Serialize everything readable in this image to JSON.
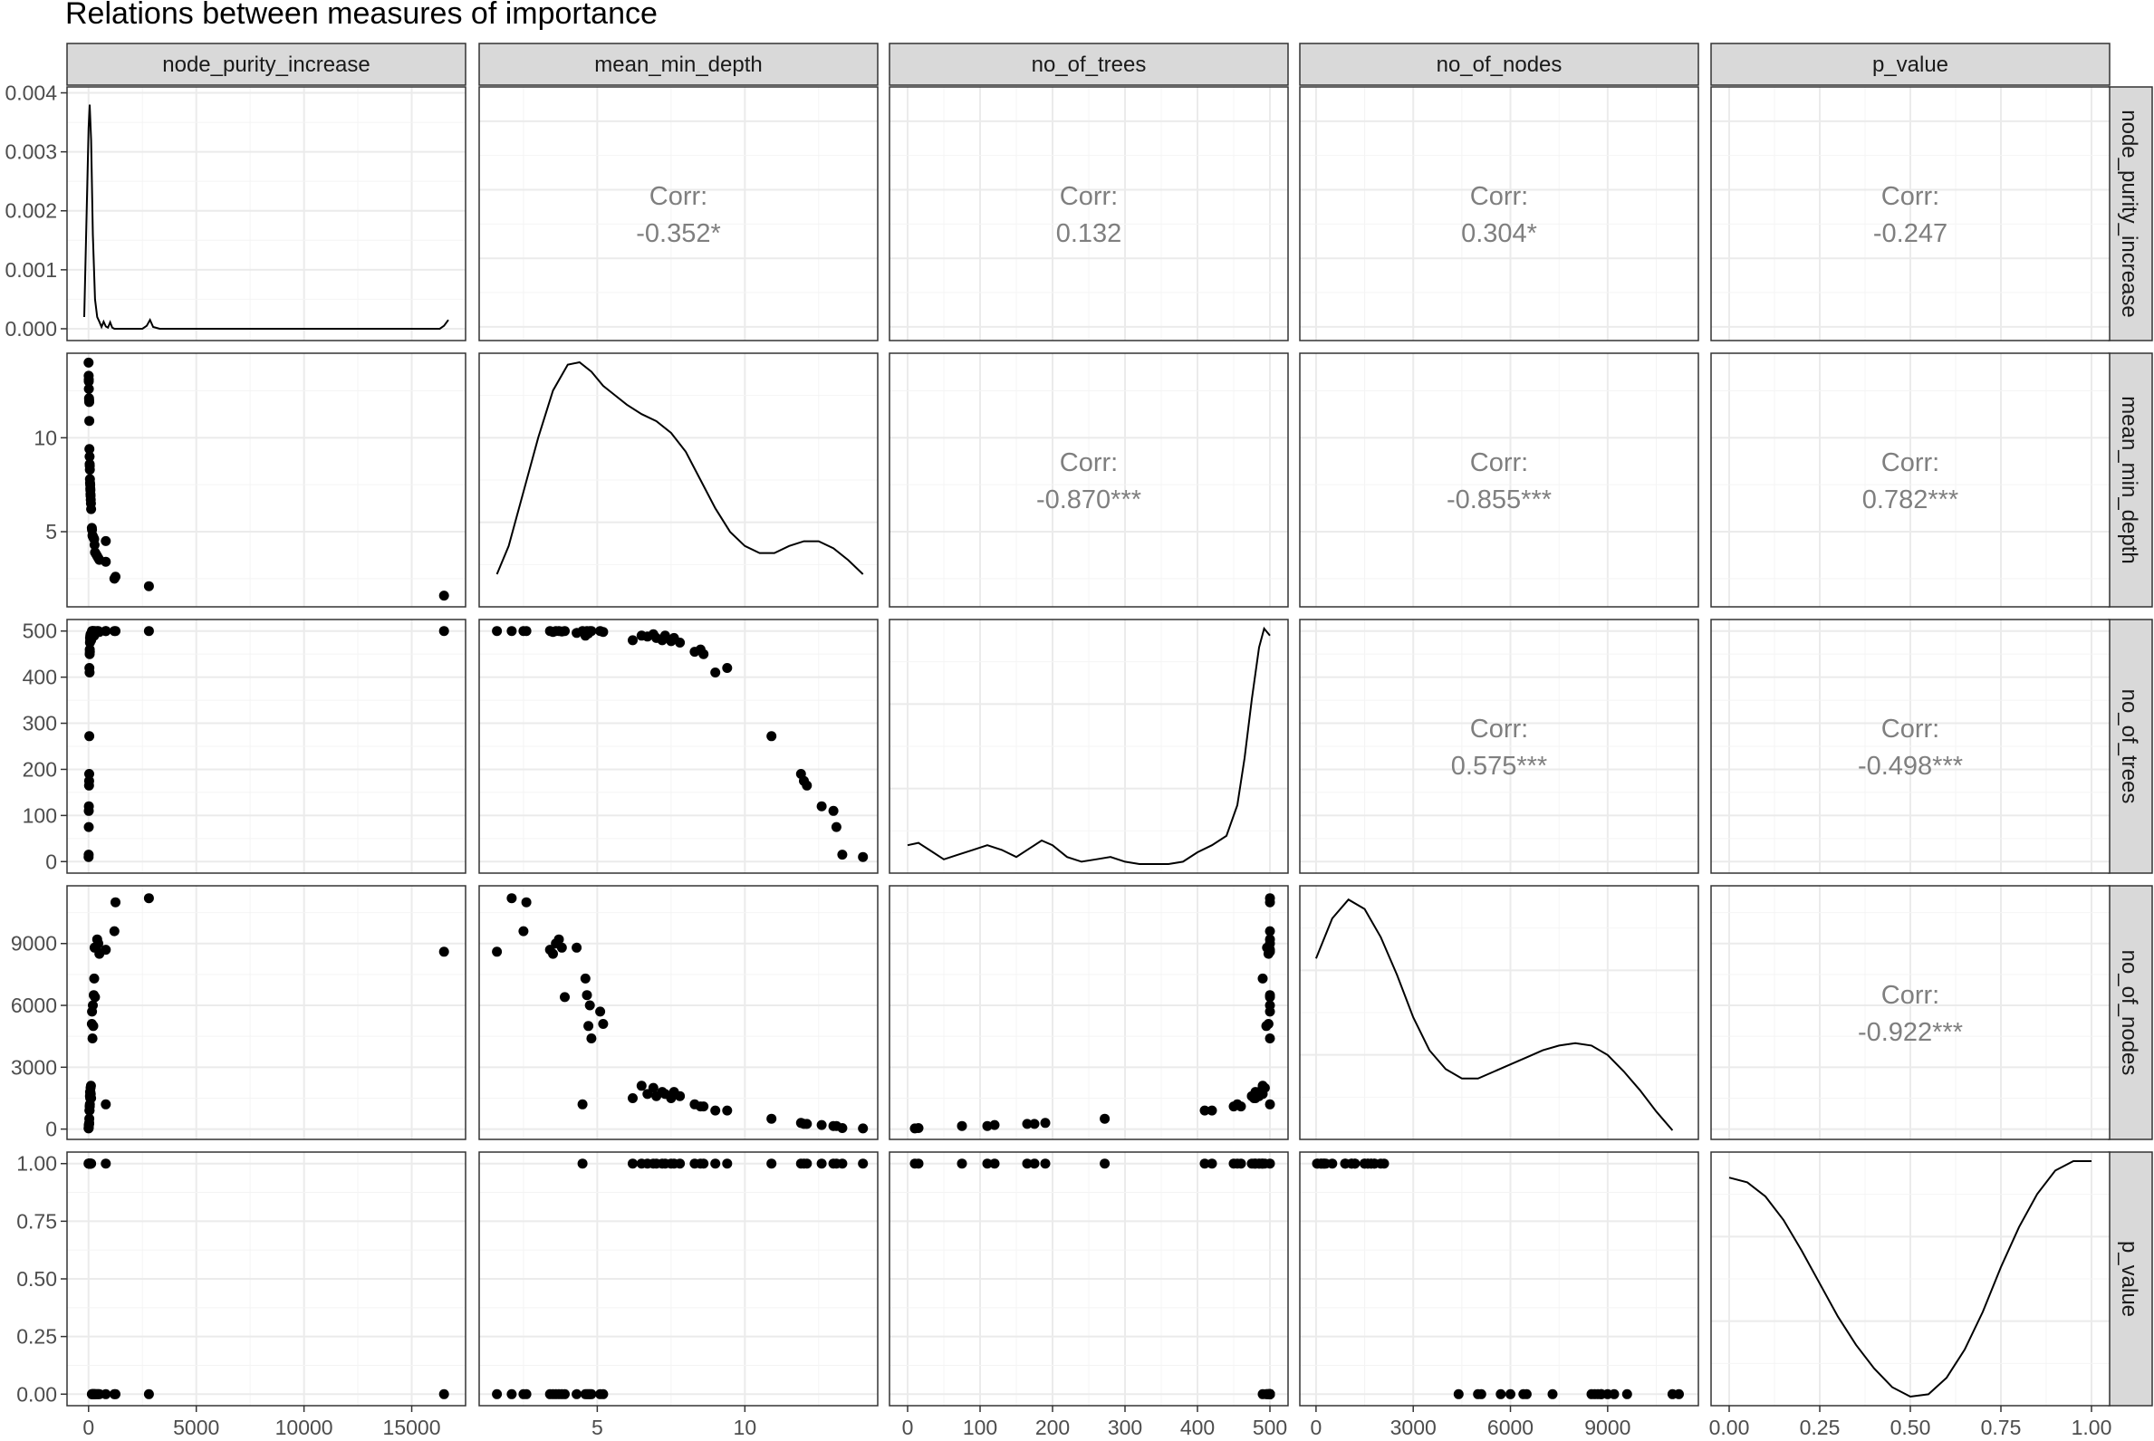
{
  "title": "Relations between measures of importance",
  "variables": [
    "node_purity_increase",
    "mean_min_depth",
    "no_of_trees",
    "no_of_nodes",
    "p_value"
  ],
  "colors": {
    "strip_fill": "#d9d9d9",
    "panel_border": "#333333",
    "grid_major": "#ebebeb",
    "grid_minor": "#f4f4f4",
    "points": "#000000",
    "corr_text": "#7f7f7f",
    "text": "#000000"
  },
  "chart_data": {
    "type": "scatter-matrix",
    "grid": true,
    "axes": {
      "node_purity_increase": {
        "lim": [
          -1000,
          17500
        ],
        "ticks": [
          0,
          5000,
          10000,
          15000
        ],
        "tick_labels": [
          "0",
          "5000",
          "10000",
          "15000"
        ]
      },
      "mean_min_depth": {
        "lim": [
          1,
          14.5
        ],
        "ticks": [
          5,
          10
        ],
        "tick_labels": [
          "5",
          "10"
        ]
      },
      "no_of_trees": {
        "lim": [
          -25,
          525
        ],
        "ticks": [
          0,
          100,
          200,
          300,
          400,
          500
        ],
        "tick_labels": [
          "0",
          "100",
          "200",
          "300",
          "400",
          "500"
        ]
      },
      "no_of_nodes": {
        "lim": [
          -500,
          11800
        ],
        "ticks": [
          0,
          3000,
          6000,
          9000
        ],
        "tick_labels": [
          "0",
          "3000",
          "6000",
          "9000"
        ]
      },
      "p_value": {
        "lim": [
          -0.05,
          1.05
        ],
        "ticks": [
          0,
          0.25,
          0.5,
          0.75,
          1
        ],
        "tick_labels": [
          "0.00",
          "0.25",
          "0.50",
          "0.75",
          "1.00"
        ]
      }
    },
    "density_y_axis": {
      "lim": [
        -0.0002,
        0.0041
      ],
      "ticks": [
        0,
        0.001,
        0.002,
        0.003,
        0.004
      ],
      "tick_labels": [
        "0.000",
        "0.001",
        "0.002",
        "0.003",
        "0.004"
      ]
    },
    "correlations": [
      {
        "row": 0,
        "col": 1,
        "label": "Corr:",
        "value": "-0.352*"
      },
      {
        "row": 0,
        "col": 2,
        "label": "Corr:",
        "value": "0.132"
      },
      {
        "row": 0,
        "col": 3,
        "label": "Corr:",
        "value": "0.304*"
      },
      {
        "row": 0,
        "col": 4,
        "label": "Corr:",
        "value": "-0.247"
      },
      {
        "row": 1,
        "col": 2,
        "label": "Corr:",
        "value": "-0.870***"
      },
      {
        "row": 1,
        "col": 3,
        "label": "Corr:",
        "value": "-0.855***"
      },
      {
        "row": 1,
        "col": 4,
        "label": "Corr:",
        "value": "0.782***"
      },
      {
        "row": 2,
        "col": 3,
        "label": "Corr:",
        "value": "0.575***"
      },
      {
        "row": 2,
        "col": 4,
        "label": "Corr:",
        "value": "-0.498***"
      },
      {
        "row": 3,
        "col": 4,
        "label": "Corr:",
        "value": "-0.922***"
      }
    ],
    "densities": {
      "node_purity_increase": [
        [
          -200,
          0.0002
        ],
        [
          0,
          0.0034
        ],
        [
          50,
          0.0038
        ],
        [
          120,
          0.0032
        ],
        [
          200,
          0.0016
        ],
        [
          300,
          0.0005
        ],
        [
          400,
          0.0002
        ],
        [
          500,
          0.00012
        ],
        [
          600,
          3e-05
        ],
        [
          700,
          0.00012
        ],
        [
          800,
          4e-05
        ],
        [
          900,
          2e-05
        ],
        [
          1000,
          0.00011
        ],
        [
          1100,
          2e-05
        ],
        [
          1200,
          0.0
        ],
        [
          1500,
          0.0
        ],
        [
          2000,
          0.0
        ],
        [
          2500,
          0.0
        ],
        [
          2700,
          5e-05
        ],
        [
          2850,
          0.00015
        ],
        [
          3000,
          3e-05
        ],
        [
          3300,
          0.0
        ],
        [
          6000,
          0.0
        ],
        [
          10000,
          0.0
        ],
        [
          15000,
          0.0
        ],
        [
          16300,
          0.0
        ],
        [
          16500,
          5e-05
        ],
        [
          16700,
          0.00015
        ]
      ],
      "mean_min_depth": [
        [
          1.6,
          0.1
        ],
        [
          2.0,
          0.22
        ],
        [
          2.5,
          0.45
        ],
        [
          3.0,
          0.68
        ],
        [
          3.5,
          0.88
        ],
        [
          4.0,
          0.99
        ],
        [
          4.4,
          1.0
        ],
        [
          4.8,
          0.96
        ],
        [
          5.2,
          0.9
        ],
        [
          5.6,
          0.86
        ],
        [
          6.0,
          0.82
        ],
        [
          6.5,
          0.78
        ],
        [
          7.0,
          0.75
        ],
        [
          7.5,
          0.7
        ],
        [
          8.0,
          0.62
        ],
        [
          8.5,
          0.5
        ],
        [
          9.0,
          0.38
        ],
        [
          9.5,
          0.28
        ],
        [
          10.0,
          0.22
        ],
        [
          10.5,
          0.19
        ],
        [
          11.0,
          0.19
        ],
        [
          11.5,
          0.22
        ],
        [
          12.0,
          0.24
        ],
        [
          12.5,
          0.24
        ],
        [
          13.0,
          0.21
        ],
        [
          13.5,
          0.16
        ],
        [
          14.0,
          0.1
        ]
      ],
      "no_of_trees": [
        [
          0,
          0.08
        ],
        [
          15,
          0.09
        ],
        [
          30,
          0.06
        ],
        [
          50,
          0.02
        ],
        [
          70,
          0.04
        ],
        [
          90,
          0.06
        ],
        [
          110,
          0.08
        ],
        [
          130,
          0.06
        ],
        [
          150,
          0.03
        ],
        [
          170,
          0.07
        ],
        [
          185,
          0.1
        ],
        [
          200,
          0.08
        ],
        [
          220,
          0.03
        ],
        [
          240,
          0.01
        ],
        [
          260,
          0.02
        ],
        [
          280,
          0.03
        ],
        [
          300,
          0.01
        ],
        [
          320,
          0.0
        ],
        [
          340,
          0.0
        ],
        [
          360,
          0.0
        ],
        [
          380,
          0.01
        ],
        [
          400,
          0.05
        ],
        [
          420,
          0.08
        ],
        [
          440,
          0.12
        ],
        [
          455,
          0.25
        ],
        [
          465,
          0.45
        ],
        [
          475,
          0.7
        ],
        [
          485,
          0.92
        ],
        [
          492,
          1.0
        ],
        [
          500,
          0.97
        ]
      ],
      "no_of_nodes": [
        [
          0,
          0.73
        ],
        [
          500,
          0.9
        ],
        [
          1000,
          0.98
        ],
        [
          1500,
          0.94
        ],
        [
          2000,
          0.82
        ],
        [
          2500,
          0.66
        ],
        [
          3000,
          0.48
        ],
        [
          3500,
          0.34
        ],
        [
          4000,
          0.26
        ],
        [
          4500,
          0.22
        ],
        [
          5000,
          0.22
        ],
        [
          5500,
          0.25
        ],
        [
          6000,
          0.28
        ],
        [
          6500,
          0.31
        ],
        [
          7000,
          0.34
        ],
        [
          7500,
          0.36
        ],
        [
          8000,
          0.37
        ],
        [
          8500,
          0.36
        ],
        [
          9000,
          0.32
        ],
        [
          9500,
          0.25
        ],
        [
          10000,
          0.17
        ],
        [
          10500,
          0.08
        ],
        [
          11000,
          0.0
        ]
      ],
      "p_value": [
        [
          0,
          0.93
        ],
        [
          0.05,
          0.91
        ],
        [
          0.1,
          0.85
        ],
        [
          0.15,
          0.75
        ],
        [
          0.2,
          0.62
        ],
        [
          0.25,
          0.48
        ],
        [
          0.3,
          0.34
        ],
        [
          0.35,
          0.22
        ],
        [
          0.4,
          0.12
        ],
        [
          0.45,
          0.04
        ],
        [
          0.5,
          0.0
        ],
        [
          0.55,
          0.01
        ],
        [
          0.6,
          0.08
        ],
        [
          0.65,
          0.2
        ],
        [
          0.7,
          0.36
        ],
        [
          0.75,
          0.55
        ],
        [
          0.8,
          0.72
        ],
        [
          0.85,
          0.86
        ],
        [
          0.9,
          0.96
        ],
        [
          0.95,
          1.0
        ],
        [
          1.0,
          1.0
        ]
      ]
    },
    "points": [
      {
        "node_purity_increase": 16500,
        "mean_min_depth": 1.6,
        "no_of_trees": 500,
        "no_of_nodes": 8600,
        "p_value": 0
      },
      {
        "node_purity_increase": 2800,
        "mean_min_depth": 2.1,
        "no_of_trees": 500,
        "no_of_nodes": 11200,
        "p_value": 0
      },
      {
        "node_purity_increase": 1200,
        "mean_min_depth": 2.5,
        "no_of_trees": 500,
        "no_of_nodes": 9600,
        "p_value": 0
      },
      {
        "node_purity_increase": 1250,
        "mean_min_depth": 2.6,
        "no_of_trees": 500,
        "no_of_nodes": 11000,
        "p_value": 0
      },
      {
        "node_purity_increase": 800,
        "mean_min_depth": 3.4,
        "no_of_trees": 500,
        "no_of_nodes": 8700,
        "p_value": 0
      },
      {
        "node_purity_increase": 500,
        "mean_min_depth": 3.5,
        "no_of_trees": 498,
        "no_of_nodes": 8500,
        "p_value": 0
      },
      {
        "node_purity_increase": 450,
        "mean_min_depth": 3.6,
        "no_of_trees": 500,
        "no_of_nodes": 9000,
        "p_value": 0
      },
      {
        "node_purity_increase": 400,
        "mean_min_depth": 3.7,
        "no_of_trees": 500,
        "no_of_nodes": 9200,
        "p_value": 0
      },
      {
        "node_purity_increase": 350,
        "mean_min_depth": 3.8,
        "no_of_trees": 499,
        "no_of_nodes": 8800,
        "p_value": 0
      },
      {
        "node_purity_increase": 300,
        "mean_min_depth": 3.9,
        "no_of_trees": 500,
        "no_of_nodes": 6400,
        "p_value": 0
      },
      {
        "node_purity_increase": 280,
        "mean_min_depth": 4.3,
        "no_of_trees": 496,
        "no_of_nodes": 8800,
        "p_value": 0
      },
      {
        "node_purity_increase": 800,
        "mean_min_depth": 4.5,
        "no_of_trees": 500,
        "no_of_nodes": 1200,
        "p_value": 1
      },
      {
        "node_purity_increase": 260,
        "mean_min_depth": 4.6,
        "no_of_trees": 490,
        "no_of_nodes": 7300,
        "p_value": 0
      },
      {
        "node_purity_increase": 240,
        "mean_min_depth": 4.65,
        "no_of_trees": 500,
        "no_of_nodes": 6500,
        "p_value": 0
      },
      {
        "node_purity_increase": 220,
        "mean_min_depth": 4.7,
        "no_of_trees": 495,
        "no_of_nodes": 5000,
        "p_value": 0
      },
      {
        "node_purity_increase": 200,
        "mean_min_depth": 4.75,
        "no_of_trees": 500,
        "no_of_nodes": 6000,
        "p_value": 0
      },
      {
        "node_purity_increase": 180,
        "mean_min_depth": 4.8,
        "no_of_trees": 500,
        "no_of_nodes": 4400,
        "p_value": 0
      },
      {
        "node_purity_increase": 160,
        "mean_min_depth": 5.1,
        "no_of_trees": 500,
        "no_of_nodes": 5700,
        "p_value": 0
      },
      {
        "node_purity_increase": 150,
        "mean_min_depth": 5.2,
        "no_of_trees": 498,
        "no_of_nodes": 5100,
        "p_value": 0
      },
      {
        "node_purity_increase": 120,
        "mean_min_depth": 6.2,
        "no_of_trees": 480,
        "no_of_nodes": 1500,
        "p_value": 1
      },
      {
        "node_purity_increase": 110,
        "mean_min_depth": 6.5,
        "no_of_trees": 490,
        "no_of_nodes": 2100,
        "p_value": 1
      },
      {
        "node_purity_increase": 100,
        "mean_min_depth": 6.7,
        "no_of_trees": 488,
        "no_of_nodes": 1700,
        "p_value": 1
      },
      {
        "node_purity_increase": 95,
        "mean_min_depth": 6.9,
        "no_of_trees": 493,
        "no_of_nodes": 2000,
        "p_value": 1
      },
      {
        "node_purity_increase": 90,
        "mean_min_depth": 7.0,
        "no_of_trees": 485,
        "no_of_nodes": 1600,
        "p_value": 1
      },
      {
        "node_purity_increase": 85,
        "mean_min_depth": 7.2,
        "no_of_trees": 480,
        "no_of_nodes": 1800,
        "p_value": 1
      },
      {
        "node_purity_increase": 80,
        "mean_min_depth": 7.3,
        "no_of_trees": 490,
        "no_of_nodes": 1700,
        "p_value": 1
      },
      {
        "node_purity_increase": 75,
        "mean_min_depth": 7.5,
        "no_of_trees": 478,
        "no_of_nodes": 1500,
        "p_value": 1
      },
      {
        "node_purity_increase": 70,
        "mean_min_depth": 7.6,
        "no_of_trees": 485,
        "no_of_nodes": 1800,
        "p_value": 1
      },
      {
        "node_purity_increase": 65,
        "mean_min_depth": 7.8,
        "no_of_trees": 475,
        "no_of_nodes": 1600,
        "p_value": 1
      },
      {
        "node_purity_increase": 60,
        "mean_min_depth": 8.3,
        "no_of_trees": 455,
        "no_of_nodes": 1200,
        "p_value": 1
      },
      {
        "node_purity_increase": 55,
        "mean_min_depth": 8.5,
        "no_of_trees": 460,
        "no_of_nodes": 1100,
        "p_value": 1
      },
      {
        "node_purity_increase": 50,
        "mean_min_depth": 8.6,
        "no_of_trees": 450,
        "no_of_nodes": 1100,
        "p_value": 1
      },
      {
        "node_purity_increase": 45,
        "mean_min_depth": 9.0,
        "no_of_trees": 410,
        "no_of_nodes": 900,
        "p_value": 1
      },
      {
        "node_purity_increase": 40,
        "mean_min_depth": 9.4,
        "no_of_trees": 420,
        "no_of_nodes": 900,
        "p_value": 1
      },
      {
        "node_purity_increase": 35,
        "mean_min_depth": 10.9,
        "no_of_trees": 272,
        "no_of_nodes": 500,
        "p_value": 1
      },
      {
        "node_purity_increase": 30,
        "mean_min_depth": 11.9,
        "no_of_trees": 190,
        "no_of_nodes": 300,
        "p_value": 1
      },
      {
        "node_purity_increase": 25,
        "mean_min_depth": 12.0,
        "no_of_trees": 175,
        "no_of_nodes": 250,
        "p_value": 1
      },
      {
        "node_purity_increase": 20,
        "mean_min_depth": 12.1,
        "no_of_trees": 165,
        "no_of_nodes": 250,
        "p_value": 1
      },
      {
        "node_purity_increase": 15,
        "mean_min_depth": 12.6,
        "no_of_trees": 120,
        "no_of_nodes": 200,
        "p_value": 1
      },
      {
        "node_purity_increase": 10,
        "mean_min_depth": 13.0,
        "no_of_trees": 110,
        "no_of_nodes": 150,
        "p_value": 1
      },
      {
        "node_purity_increase": 8,
        "mean_min_depth": 13.1,
        "no_of_trees": 75,
        "no_of_nodes": 150,
        "p_value": 1
      },
      {
        "node_purity_increase": 5,
        "mean_min_depth": 13.3,
        "no_of_trees": 15,
        "no_of_nodes": 50,
        "p_value": 1
      },
      {
        "node_purity_increase": 2,
        "mean_min_depth": 14.0,
        "no_of_trees": 10,
        "no_of_nodes": 30,
        "p_value": 1
      }
    ]
  }
}
